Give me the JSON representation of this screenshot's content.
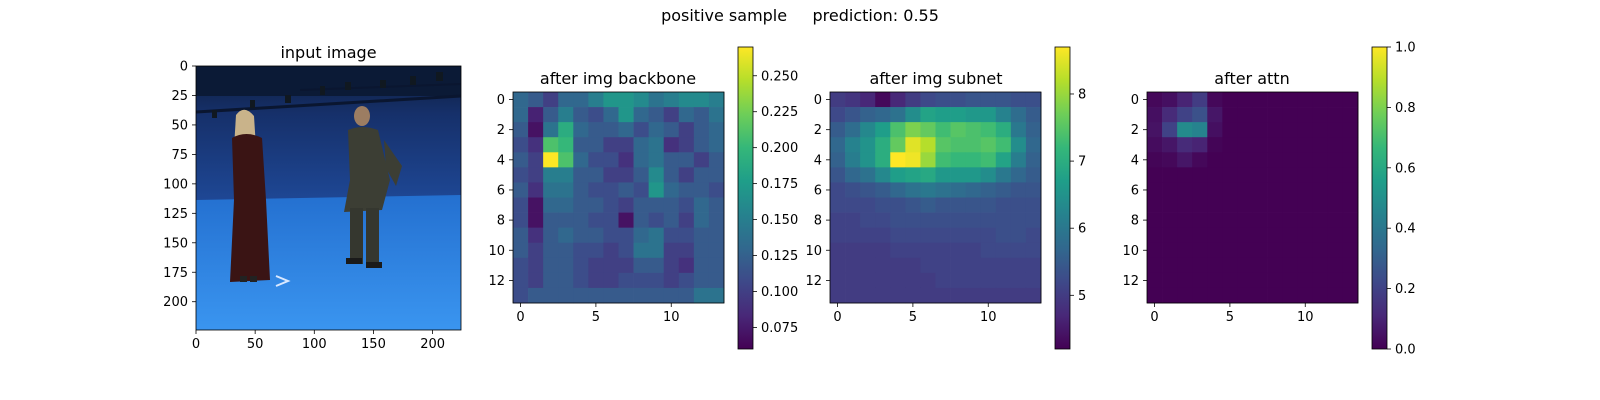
{
  "figure": {
    "suptitle": "positive sample     prediction: 0.55"
  },
  "chart_data": [
    {
      "type": "image",
      "title": "input image",
      "xlim": [
        0,
        224
      ],
      "ylim": [
        224,
        0
      ],
      "xticks": [
        "0",
        "50",
        "100",
        "150",
        "200"
      ],
      "xtick_values": [
        0,
        50,
        100,
        150,
        200
      ],
      "yticks": [
        "0",
        "25",
        "50",
        "75",
        "100",
        "125",
        "150",
        "175",
        "200"
      ],
      "ytick_values": [
        0,
        25,
        50,
        75,
        100,
        125,
        150,
        175,
        200
      ],
      "colors": {
        "wall": "#1c3f8c",
        "floor": "#2f86e8",
        "ceiling": "#0c1c3a"
      }
    },
    {
      "type": "heatmap",
      "title": "after img backbone",
      "colormap": "viridis",
      "xticks": [
        "0",
        "5",
        "10"
      ],
      "xtick_values": [
        0,
        5,
        10
      ],
      "yticks": [
        "0",
        "2",
        "4",
        "6",
        "8",
        "10",
        "12"
      ],
      "ytick_values": [
        0,
        2,
        4,
        6,
        8,
        10,
        12
      ],
      "colorbar": {
        "vmin": 0.06,
        "vmax": 0.27,
        "ticks": [
          "0.075",
          "0.100",
          "0.125",
          "0.150",
          "0.175",
          "0.200",
          "0.225",
          "0.250"
        ],
        "tick_values": [
          0.075,
          0.1,
          0.125,
          0.15,
          0.175,
          0.2,
          0.225,
          0.25
        ]
      },
      "values": [
        [
          0.13,
          0.12,
          0.1,
          0.13,
          0.13,
          0.15,
          0.17,
          0.17,
          0.16,
          0.14,
          0.15,
          0.16,
          0.16,
          0.15
        ],
        [
          0.13,
          0.08,
          0.12,
          0.15,
          0.12,
          0.11,
          0.13,
          0.17,
          0.13,
          0.12,
          0.1,
          0.13,
          0.12,
          0.14
        ],
        [
          0.12,
          0.07,
          0.14,
          0.19,
          0.13,
          0.12,
          0.12,
          0.13,
          0.11,
          0.13,
          0.12,
          0.1,
          0.12,
          0.13
        ],
        [
          0.11,
          0.09,
          0.21,
          0.2,
          0.12,
          0.12,
          0.1,
          0.1,
          0.13,
          0.14,
          0.09,
          0.1,
          0.12,
          0.13
        ],
        [
          0.12,
          0.1,
          0.27,
          0.21,
          0.13,
          0.11,
          0.11,
          0.09,
          0.13,
          0.14,
          0.12,
          0.12,
          0.1,
          0.12
        ],
        [
          0.11,
          0.1,
          0.15,
          0.15,
          0.12,
          0.12,
          0.1,
          0.1,
          0.12,
          0.16,
          0.12,
          0.1,
          0.12,
          0.12
        ],
        [
          0.12,
          0.09,
          0.14,
          0.14,
          0.12,
          0.11,
          0.11,
          0.12,
          0.11,
          0.17,
          0.13,
          0.12,
          0.12,
          0.11
        ],
        [
          0.11,
          0.07,
          0.13,
          0.13,
          0.12,
          0.12,
          0.11,
          0.1,
          0.12,
          0.12,
          0.12,
          0.11,
          0.13,
          0.12
        ],
        [
          0.11,
          0.07,
          0.12,
          0.12,
          0.12,
          0.11,
          0.11,
          0.07,
          0.12,
          0.11,
          0.12,
          0.1,
          0.13,
          0.12
        ],
        [
          0.12,
          0.09,
          0.12,
          0.13,
          0.12,
          0.12,
          0.11,
          0.11,
          0.13,
          0.14,
          0.11,
          0.11,
          0.12,
          0.12
        ],
        [
          0.12,
          0.1,
          0.12,
          0.12,
          0.11,
          0.11,
          0.1,
          0.11,
          0.14,
          0.14,
          0.1,
          0.1,
          0.12,
          0.12
        ],
        [
          0.11,
          0.1,
          0.12,
          0.12,
          0.11,
          0.1,
          0.1,
          0.1,
          0.12,
          0.12,
          0.1,
          0.09,
          0.12,
          0.12
        ],
        [
          0.11,
          0.1,
          0.12,
          0.12,
          0.11,
          0.1,
          0.1,
          0.11,
          0.11,
          0.11,
          0.1,
          0.11,
          0.12,
          0.12
        ],
        [
          0.11,
          0.12,
          0.12,
          0.12,
          0.12,
          0.12,
          0.12,
          0.12,
          0.12,
          0.12,
          0.12,
          0.12,
          0.14,
          0.14
        ]
      ]
    },
    {
      "type": "heatmap",
      "title": "after img subnet",
      "colormap": "viridis",
      "xticks": [
        "0",
        "5",
        "10"
      ],
      "xtick_values": [
        0,
        5,
        10
      ],
      "yticks": [
        "0",
        "2",
        "4",
        "6",
        "8",
        "10",
        "12"
      ],
      "ytick_values": [
        0,
        2,
        4,
        6,
        8,
        10,
        12
      ],
      "colorbar": {
        "vmin": 4.2,
        "vmax": 8.7,
        "ticks": [
          "5",
          "6",
          "7",
          "8"
        ],
        "tick_values": [
          5,
          6,
          7,
          8
        ]
      },
      "values": [
        [
          5.0,
          4.9,
          4.7,
          4.3,
          4.7,
          5.0,
          5.2,
          5.3,
          5.3,
          5.4,
          5.4,
          5.4,
          5.3,
          5.3
        ],
        [
          5.2,
          5.4,
          5.6,
          5.7,
          5.9,
          6.4,
          6.8,
          6.7,
          6.7,
          6.6,
          6.6,
          6.2,
          5.8,
          5.5
        ],
        [
          5.5,
          5.8,
          6.3,
          6.7,
          7.4,
          7.8,
          7.6,
          7.3,
          7.5,
          7.4,
          7.3,
          7.0,
          6.0,
          5.6
        ],
        [
          5.7,
          6.2,
          6.5,
          7.0,
          7.6,
          8.5,
          8.2,
          7.5,
          7.4,
          7.4,
          7.5,
          7.3,
          6.4,
          5.7
        ],
        [
          5.6,
          6.1,
          6.5,
          7.0,
          8.7,
          8.6,
          8.0,
          7.3,
          7.2,
          7.2,
          7.3,
          6.8,
          6.1,
          5.6
        ],
        [
          5.4,
          5.7,
          5.9,
          6.3,
          6.7,
          6.8,
          6.9,
          6.6,
          6.6,
          6.6,
          6.4,
          6.0,
          5.7,
          5.5
        ],
        [
          5.2,
          5.3,
          5.4,
          5.5,
          5.7,
          5.9,
          6.0,
          5.9,
          5.8,
          5.7,
          5.6,
          5.5,
          5.4,
          5.4
        ],
        [
          5.2,
          5.2,
          5.2,
          5.3,
          5.3,
          5.4,
          5.5,
          5.4,
          5.4,
          5.4,
          5.4,
          5.3,
          5.3,
          5.3
        ],
        [
          5.1,
          5.1,
          5.2,
          5.2,
          5.3,
          5.3,
          5.3,
          5.3,
          5.3,
          5.3,
          5.3,
          5.3,
          5.3,
          5.3
        ],
        [
          5.1,
          5.1,
          5.1,
          5.1,
          5.2,
          5.2,
          5.2,
          5.2,
          5.2,
          5.2,
          5.2,
          5.3,
          5.3,
          5.2
        ],
        [
          5.0,
          5.0,
          5.0,
          5.0,
          5.1,
          5.1,
          5.1,
          5.1,
          5.1,
          5.1,
          5.2,
          5.2,
          5.2,
          5.2
        ],
        [
          5.0,
          5.0,
          5.0,
          5.0,
          5.0,
          5.0,
          5.1,
          5.1,
          5.1,
          5.1,
          5.1,
          5.1,
          5.1,
          5.1
        ],
        [
          5.0,
          5.0,
          5.0,
          5.0,
          5.0,
          5.0,
          5.0,
          5.1,
          5.1,
          5.1,
          5.1,
          5.1,
          5.1,
          5.1
        ],
        [
          5.0,
          5.0,
          5.0,
          5.0,
          5.0,
          5.0,
          5.0,
          5.0,
          5.0,
          5.0,
          5.0,
          5.0,
          5.0,
          5.0
        ]
      ]
    },
    {
      "type": "heatmap",
      "title": "after attn",
      "colormap": "viridis",
      "xticks": [
        "0",
        "5",
        "10"
      ],
      "xtick_values": [
        0,
        5,
        10
      ],
      "yticks": [
        "0",
        "2",
        "4",
        "6",
        "8",
        "10",
        "12"
      ],
      "ytick_values": [
        0,
        2,
        4,
        6,
        8,
        10,
        12
      ],
      "colorbar": {
        "vmin": 0.0,
        "vmax": 1.0,
        "ticks": [
          "0.0",
          "0.2",
          "0.4",
          "0.6",
          "0.8",
          "1.0"
        ],
        "tick_values": [
          0.0,
          0.2,
          0.4,
          0.6,
          0.8,
          1.0
        ]
      },
      "values": [
        [
          0.02,
          0.04,
          0.1,
          0.18,
          0.02,
          0,
          0,
          0,
          0,
          0,
          0,
          0,
          0,
          0
        ],
        [
          0.04,
          0.12,
          0.2,
          0.25,
          0.06,
          0,
          0,
          0,
          0,
          0,
          0,
          0,
          0,
          0
        ],
        [
          0.05,
          0.2,
          0.48,
          0.45,
          0.04,
          0,
          0,
          0,
          0,
          0,
          0,
          0,
          0,
          0
        ],
        [
          0.03,
          0.06,
          0.12,
          0.1,
          0.01,
          0,
          0,
          0,
          0,
          0,
          0,
          0,
          0,
          0
        ],
        [
          0.01,
          0.02,
          0.06,
          0.02,
          0,
          0,
          0,
          0,
          0,
          0,
          0,
          0,
          0,
          0
        ],
        [
          0,
          0,
          0,
          0,
          0,
          0,
          0,
          0,
          0,
          0,
          0,
          0,
          0,
          0
        ],
        [
          0,
          0,
          0,
          0,
          0,
          0,
          0,
          0,
          0,
          0,
          0,
          0,
          0,
          0
        ],
        [
          0,
          0,
          0,
          0,
          0,
          0,
          0,
          0,
          0,
          0,
          0,
          0,
          0,
          0
        ],
        [
          0,
          0,
          0,
          0,
          0,
          0,
          0,
          0,
          0,
          0,
          0,
          0,
          0,
          0
        ],
        [
          0,
          0,
          0,
          0,
          0,
          0,
          0,
          0,
          0,
          0,
          0,
          0,
          0,
          0
        ],
        [
          0,
          0,
          0,
          0,
          0,
          0,
          0,
          0,
          0,
          0,
          0,
          0,
          0,
          0
        ],
        [
          0,
          0,
          0,
          0,
          0,
          0,
          0,
          0,
          0,
          0,
          0,
          0,
          0,
          0
        ],
        [
          0,
          0,
          0,
          0,
          0,
          0,
          0,
          0,
          0,
          0,
          0,
          0,
          0,
          0
        ],
        [
          0,
          0,
          0,
          0,
          0,
          0,
          0,
          0,
          0,
          0,
          0,
          0,
          0,
          0
        ]
      ]
    }
  ]
}
